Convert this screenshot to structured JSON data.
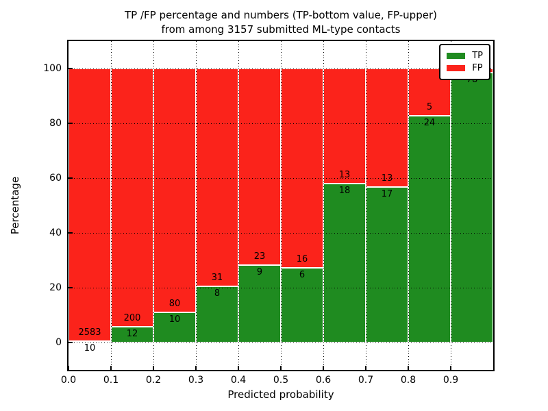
{
  "title": {
    "line1": "TP /FP percentage and numbers (TP-bottom value, FP-upper)",
    "line2": "from among 3157 submitted ML-type contacts"
  },
  "axes": {
    "xlabel": "Predicted probability",
    "ylabel": "Percentage",
    "ytick_labels": [
      "0",
      "20",
      "40",
      "60",
      "80",
      "100"
    ],
    "ytick_values": [
      0,
      20,
      40,
      60,
      80,
      100
    ],
    "xtick_labels": [
      "0.0",
      "0.1",
      "0.2",
      "0.3",
      "0.4",
      "0.5",
      "0.6",
      "0.7",
      "0.8",
      "0.9"
    ],
    "ylim": [
      -10,
      110
    ],
    "xlim": [
      0.0,
      1.0
    ],
    "grid": "dotted black, horizontal at y ticks and vertical at x ticks, drawn over bars"
  },
  "legend": {
    "position": "upper right",
    "items": [
      {
        "label": "TP",
        "color": "#1f8b20"
      },
      {
        "label": "FP",
        "color": "#fb231b"
      }
    ]
  },
  "colors": {
    "tp_green": "#1f8b20",
    "fp_red": "#fb231b",
    "bar_edge": "#ffffff",
    "text": "#000000",
    "background": "#ffffff"
  },
  "chart_data": {
    "type": "bar",
    "stacked": true,
    "orientation": "vertical",
    "title": "TP /FP percentage and numbers (TP-bottom value, FP-upper) from among 3157 submitted ML-type contacts",
    "xlabel": "Predicted probability",
    "ylabel": "Percentage",
    "total_contacts": 3157,
    "bin_width": 0.1,
    "categories": [
      "0.0-0.1",
      "0.1-0.2",
      "0.2-0.3",
      "0.3-0.4",
      "0.4-0.5",
      "0.5-0.6",
      "0.6-0.7",
      "0.7-0.8",
      "0.8-0.9",
      "0.9-1.0"
    ],
    "bar_total_percent": 100,
    "series": [
      {
        "name": "TP",
        "counts": [
          10,
          12,
          10,
          8,
          9,
          6,
          18,
          17,
          24,
          78
        ]
      },
      {
        "name": "FP",
        "counts": [
          2583,
          200,
          80,
          31,
          23,
          16,
          13,
          13,
          5,
          null
        ]
      }
    ],
    "tp_percent": [
      0.39,
      5.66,
      11.11,
      20.51,
      28.13,
      27.27,
      58.06,
      56.67,
      82.76,
      98.5
    ],
    "label_note": "TP count printed just below the green/red boundary, FP count just above it; FP label of last bar hidden behind legend"
  }
}
